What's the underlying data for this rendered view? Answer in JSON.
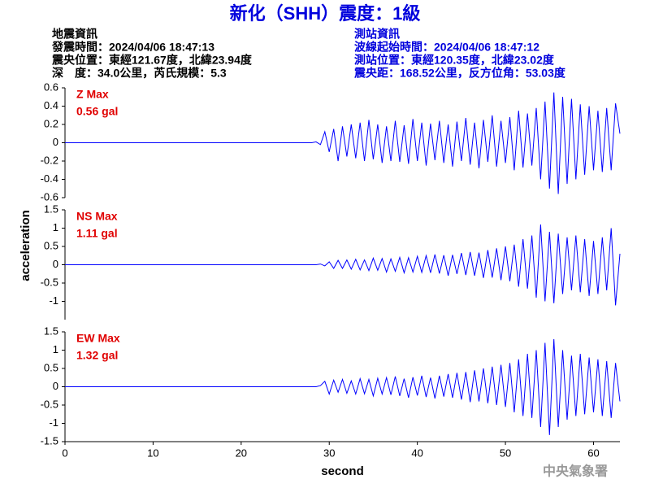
{
  "header": {
    "title": "新化（SHH）震度：1級",
    "left": [
      "地震資訊",
      "發震時間：2024/04/06 18:47:13",
      "震央位置：東經121.67度，北緯23.94度",
      "深　度：34.0公里，芮氏規模：5.3"
    ],
    "right": [
      "測站資訊",
      "波線起始時間：2024/04/06 18:47:12",
      "測站位置：東經120.35度，北緯23.02度",
      "震央距：168.52公里，反方位角：53.03度"
    ],
    "ylabel": "acceleration",
    "footer": "中央氣象署"
  },
  "chart_data": [
    {
      "type": "line",
      "annotation": "Z Max",
      "max_label": "0.56 gal",
      "color": "#0000ff",
      "xlim": [
        0,
        63
      ],
      "ylim": [
        -0.6,
        0.6
      ],
      "yticks": [
        -0.6,
        -0.4,
        -0.2,
        0,
        0.2,
        0.4,
        0.6
      ],
      "x": [
        0,
        28,
        28.5,
        29,
        29.5,
        30,
        30.5,
        31,
        31.5,
        32,
        32.5,
        33,
        33.5,
        34,
        34.5,
        35,
        35.5,
        36,
        36.5,
        37,
        37.5,
        38,
        38.5,
        39,
        39.5,
        40,
        40.5,
        41,
        41.5,
        42,
        42.5,
        43,
        43.5,
        44,
        44.5,
        45,
        45.5,
        46,
        46.5,
        47,
        47.5,
        48,
        48.5,
        49,
        49.5,
        50,
        50.5,
        51,
        51.5,
        52,
        52.5,
        53,
        53.5,
        54,
        54.5,
        55,
        55.5,
        56,
        56.5,
        57,
        57.5,
        58,
        58.5,
        59,
        59.5,
        60,
        60.5,
        61,
        61.5,
        62,
        62.5,
        63
      ],
      "values": [
        0,
        0,
        0.01,
        -0.02,
        0.12,
        -0.1,
        0.15,
        -0.2,
        0.18,
        -0.15,
        0.2,
        -0.17,
        0.22,
        -0.2,
        0.25,
        -0.18,
        0.2,
        -0.22,
        0.18,
        -0.2,
        0.24,
        -0.21,
        0.19,
        -0.23,
        0.26,
        -0.2,
        0.22,
        -0.25,
        0.21,
        -0.19,
        0.24,
        -0.22,
        0.2,
        -0.26,
        0.23,
        -0.2,
        0.27,
        -0.24,
        0.22,
        -0.28,
        0.25,
        -0.21,
        0.3,
        -0.26,
        0.24,
        -0.22,
        0.28,
        -0.3,
        0.35,
        -0.27,
        0.32,
        -0.25,
        0.38,
        -0.4,
        0.45,
        -0.5,
        0.55,
        -0.56,
        0.5,
        -0.45,
        0.48,
        -0.4,
        0.42,
        -0.35,
        0.4,
        -0.3,
        0.35,
        -0.32,
        0.38,
        -0.3,
        0.43,
        0.1
      ]
    },
    {
      "type": "line",
      "annotation": "NS Max",
      "max_label": "1.11 gal",
      "color": "#0000ff",
      "xlim": [
        0,
        63
      ],
      "ylim": [
        -1.5,
        1.5
      ],
      "yticks": [
        -1,
        -0.5,
        0,
        0.5,
        1,
        1.5
      ],
      "x": [
        0,
        28,
        28.5,
        29,
        29.5,
        30,
        30.5,
        31,
        31.5,
        32,
        32.5,
        33,
        33.5,
        34,
        34.5,
        35,
        35.5,
        36,
        36.5,
        37,
        37.5,
        38,
        38.5,
        39,
        39.5,
        40,
        40.5,
        41,
        41.5,
        42,
        42.5,
        43,
        43.5,
        44,
        44.5,
        45,
        45.5,
        46,
        46.5,
        47,
        47.5,
        48,
        48.5,
        49,
        49.5,
        50,
        50.5,
        51,
        51.5,
        52,
        52.5,
        53,
        53.5,
        54,
        54.5,
        55,
        55.5,
        56,
        56.5,
        57,
        57.5,
        58,
        58.5,
        59,
        59.5,
        60,
        60.5,
        61,
        61.5,
        62,
        62.5,
        63
      ],
      "values": [
        0,
        0,
        0,
        0.02,
        -0.03,
        0.08,
        -0.1,
        0.12,
        -0.1,
        0.13,
        -0.12,
        0.15,
        -0.14,
        0.13,
        -0.16,
        0.18,
        -0.15,
        0.17,
        -0.2,
        0.16,
        -0.18,
        0.2,
        -0.22,
        0.19,
        -0.2,
        0.23,
        -0.21,
        0.25,
        -0.22,
        0.28,
        -0.24,
        0.26,
        -0.3,
        0.27,
        -0.25,
        0.32,
        -0.28,
        0.35,
        -0.3,
        0.33,
        -0.36,
        0.4,
        -0.35,
        0.45,
        -0.42,
        0.5,
        -0.45,
        0.55,
        -0.6,
        0.7,
        -0.65,
        0.8,
        -0.9,
        1.1,
        -1.0,
        0.9,
        -1.05,
        0.85,
        -0.8,
        0.75,
        -0.7,
        0.8,
        -0.75,
        0.7,
        -0.85,
        0.65,
        -0.8,
        0.75,
        -0.7,
        1.0,
        -1.11,
        0.3
      ]
    },
    {
      "type": "line",
      "annotation": "EW Max",
      "max_label": "1.32 gal",
      "color": "#0000ff",
      "xlim": [
        0,
        63
      ],
      "ylim": [
        -1.5,
        1.5
      ],
      "yticks": [
        -1.5,
        -1,
        -0.5,
        0,
        0.5,
        1,
        1.5
      ],
      "xticks": [
        0,
        10,
        20,
        30,
        40,
        50,
        60
      ],
      "xlabel": "second",
      "x": [
        0,
        28,
        28.5,
        29,
        29.5,
        30,
        30.5,
        31,
        31.5,
        32,
        32.5,
        33,
        33.5,
        34,
        34.5,
        35,
        35.5,
        36,
        36.5,
        37,
        37.5,
        38,
        38.5,
        39,
        39.5,
        40,
        40.5,
        41,
        41.5,
        42,
        42.5,
        43,
        43.5,
        44,
        44.5,
        45,
        45.5,
        46,
        46.5,
        47,
        47.5,
        48,
        48.5,
        49,
        49.5,
        50,
        50.5,
        51,
        51.5,
        52,
        52.5,
        53,
        53.5,
        54,
        54.5,
        55,
        55.5,
        56,
        56.5,
        57,
        57.5,
        58,
        58.5,
        59,
        59.5,
        60,
        60.5,
        61,
        61.5,
        62,
        62.5,
        63
      ],
      "values": [
        0,
        0,
        0,
        0.03,
        0.15,
        -0.2,
        0.18,
        -0.15,
        0.2,
        -0.18,
        0.16,
        -0.2,
        0.22,
        -0.19,
        0.2,
        -0.25,
        0.23,
        -0.2,
        0.25,
        -0.22,
        0.28,
        -0.25,
        0.22,
        -0.3,
        0.26,
        -0.24,
        0.3,
        -0.28,
        0.25,
        -0.32,
        0.3,
        -0.27,
        0.35,
        -0.3,
        0.38,
        -0.35,
        0.4,
        -0.42,
        0.45,
        -0.4,
        0.5,
        -0.45,
        0.55,
        -0.5,
        0.6,
        -0.55,
        0.65,
        -0.7,
        0.75,
        -0.8,
        0.9,
        -0.85,
        1.0,
        -1.1,
        1.2,
        -1.32,
        1.3,
        -1.1,
        1.0,
        -0.9,
        0.85,
        -0.8,
        0.9,
        -0.75,
        0.8,
        -0.7,
        0.75,
        -0.8,
        0.7,
        -0.85,
        0.65,
        -0.4
      ]
    }
  ]
}
